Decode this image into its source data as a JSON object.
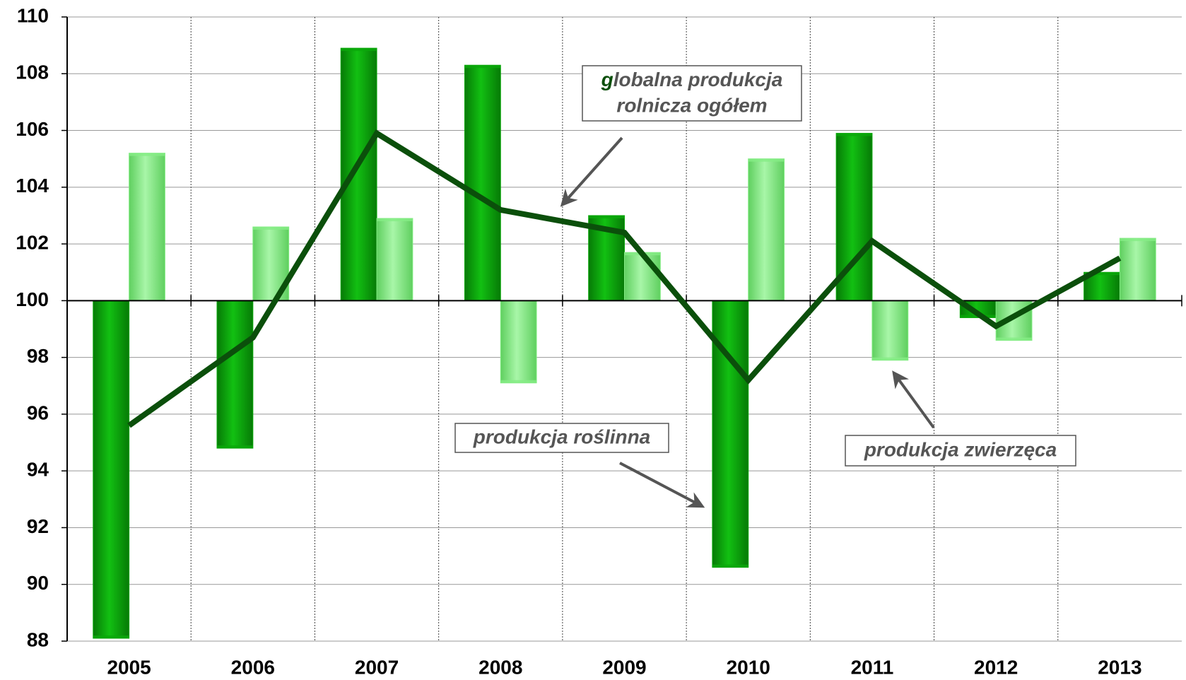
{
  "chart_data": {
    "type": "bar_line",
    "categories": [
      "2005",
      "2006",
      "2007",
      "2008",
      "2009",
      "2010",
      "2011",
      "2012",
      "2013"
    ],
    "series": [
      {
        "type": "bar",
        "color": "#0aa80a",
        "values": [
          88.1,
          94.8,
          108.9,
          108.3,
          103.0,
          90.6,
          105.9,
          99.4,
          101.0
        ]
      },
      {
        "type": "bar",
        "color": "#84ec84",
        "values": [
          105.2,
          102.6,
          102.9,
          97.1,
          101.7,
          105.0,
          97.9,
          98.6,
          102.2
        ]
      },
      {
        "type": "line",
        "color": "#0b4f0b",
        "values": [
          95.6,
          98.7,
          105.9,
          103.2,
          102.4,
          97.2,
          102.1,
          99.1,
          101.5
        ]
      }
    ],
    "bar_base": 100,
    "ylim": [
      88,
      110
    ],
    "yticks": [
      88,
      90,
      92,
      94,
      96,
      98,
      100,
      102,
      104,
      106,
      108,
      110
    ],
    "grid": true,
    "annotations": [
      {
        "lines": [
          "globalna produkcja",
          "rolnicza ogółem"
        ]
      },
      {
        "lines": [
          "produkcja roślinna"
        ]
      },
      {
        "lines": [
          "produkcja zwierzęca"
        ]
      }
    ]
  }
}
